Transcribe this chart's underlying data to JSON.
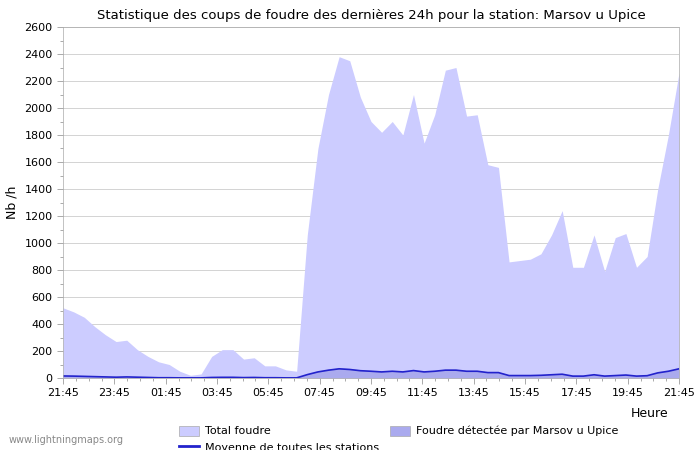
{
  "title": "Statistique des coups de foudre des dernières 24h pour la station: Marsov u Upice",
  "xlabel": "Heure",
  "ylabel": "Nb /h",
  "ylim": [
    0,
    2600
  ],
  "yticks": [
    0,
    200,
    400,
    600,
    800,
    1000,
    1200,
    1400,
    1600,
    1800,
    2000,
    2200,
    2400,
    2600
  ],
  "xtick_labels": [
    "21:45",
    "23:45",
    "01:45",
    "03:45",
    "05:45",
    "07:45",
    "09:45",
    "11:45",
    "13:45",
    "15:45",
    "17:45",
    "19:45",
    "21:45"
  ],
  "watermark": "www.lightningmaps.org",
  "color_total": "#ccccff",
  "color_detected": "#aaaaee",
  "color_mean_line": "#2222cc",
  "total_foudre": [
    520,
    490,
    450,
    380,
    320,
    270,
    280,
    210,
    160,
    120,
    100,
    50,
    20,
    30,
    160,
    210,
    210,
    140,
    150,
    90,
    90,
    60,
    50,
    1060,
    1700,
    2100,
    2380,
    2350,
    2080,
    1900,
    1820,
    1900,
    1800,
    2100,
    1740,
    1950,
    2280,
    2300,
    1940,
    1950,
    1580,
    1560,
    860,
    870,
    880,
    920,
    1060,
    1240,
    820,
    820,
    1060,
    790,
    1040,
    1070,
    820,
    900,
    1400,
    1800,
    2260
  ],
  "detected_foudre": [
    20,
    18,
    15,
    12,
    10,
    8,
    10,
    8,
    5,
    3,
    3,
    2,
    1,
    1,
    5,
    7,
    6,
    4,
    5,
    3,
    3,
    2,
    2,
    30,
    50,
    65,
    75,
    70,
    60,
    55,
    50,
    55,
    50,
    60,
    50,
    55,
    65,
    65,
    55,
    55,
    45,
    45,
    22,
    22,
    22,
    24,
    28,
    32,
    18,
    18,
    28,
    18,
    22,
    25,
    18,
    20,
    42,
    55,
    75
  ],
  "mean_line": [
    15,
    14,
    12,
    10,
    8,
    6,
    8,
    6,
    4,
    2,
    2,
    1,
    1,
    1,
    4,
    5,
    5,
    3,
    4,
    2,
    2,
    1,
    1,
    25,
    45,
    58,
    68,
    63,
    54,
    50,
    45,
    50,
    45,
    55,
    45,
    50,
    58,
    58,
    50,
    50,
    40,
    40,
    18,
    18,
    18,
    20,
    24,
    28,
    14,
    14,
    24,
    14,
    18,
    22,
    14,
    17,
    38,
    50,
    68
  ]
}
